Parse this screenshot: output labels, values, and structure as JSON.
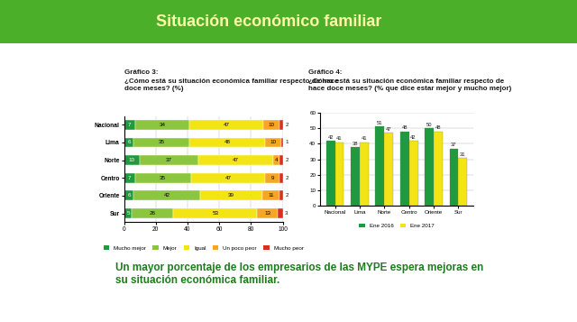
{
  "slide": {
    "title": "Situación económico familiar",
    "footer": "Un mayor porcentaje de los empresarios de las MYPE espera mejoras en su situación económica familiar."
  },
  "chart_data": [
    {
      "type": "bar",
      "orientation": "horizontal",
      "stacked": true,
      "data_labels": true,
      "title": "Gráfico 3:",
      "subtitle": "¿Cómo está su situación económica familiar respecto de hace doce meses? (%)",
      "categories": [
        "Nacional",
        "Lima",
        "Norte",
        "Centro",
        "Oriente",
        "Sur"
      ],
      "series": [
        {
          "name": "Mucho mejor",
          "color": "#1f9a3c",
          "values": [
            7,
            6,
            10,
            7,
            6,
            5
          ]
        },
        {
          "name": "Mejor",
          "color": "#8cc63f",
          "values": [
            34,
            35,
            37,
            35,
            42,
            26
          ]
        },
        {
          "name": "Igual",
          "color": "#f2e415",
          "values": [
            47,
            48,
            47,
            47,
            39,
            53
          ]
        },
        {
          "name": "Un poco peor",
          "color": "#f5a623",
          "values": [
            10,
            10,
            4,
            9,
            11,
            13
          ]
        },
        {
          "name": "Mucho peor",
          "color": "#d7301f",
          "values": [
            2,
            1,
            2,
            2,
            2,
            3
          ]
        }
      ],
      "xlim": [
        0,
        100
      ],
      "xticks": [
        0,
        20,
        40,
        60,
        80,
        100
      ],
      "grid": false,
      "legend": "bottom"
    },
    {
      "type": "bar",
      "data_labels": true,
      "title": "Gráfico 4:",
      "subtitle": "¿Cómo está su situación económica familiar respecto de hace doce meses? (% que dice estar mejor y mucho mejor)",
      "categories": [
        "Nacional",
        "Lima",
        "Norte",
        "Centro",
        "Oriente",
        "Sur"
      ],
      "series": [
        {
          "name": "Ene 2016",
          "color": "#1f9a3c",
          "values": [
            42,
            38,
            51,
            48,
            50,
            37
          ]
        },
        {
          "name": "Ene 2017",
          "color": "#f2e415",
          "values": [
            41,
            41,
            47,
            42,
            48,
            31
          ]
        }
      ],
      "ylim": [
        0,
        60
      ],
      "yticks": [
        0,
        10,
        20,
        30,
        40,
        50,
        60
      ],
      "grid": false,
      "legend": "bottom"
    }
  ]
}
